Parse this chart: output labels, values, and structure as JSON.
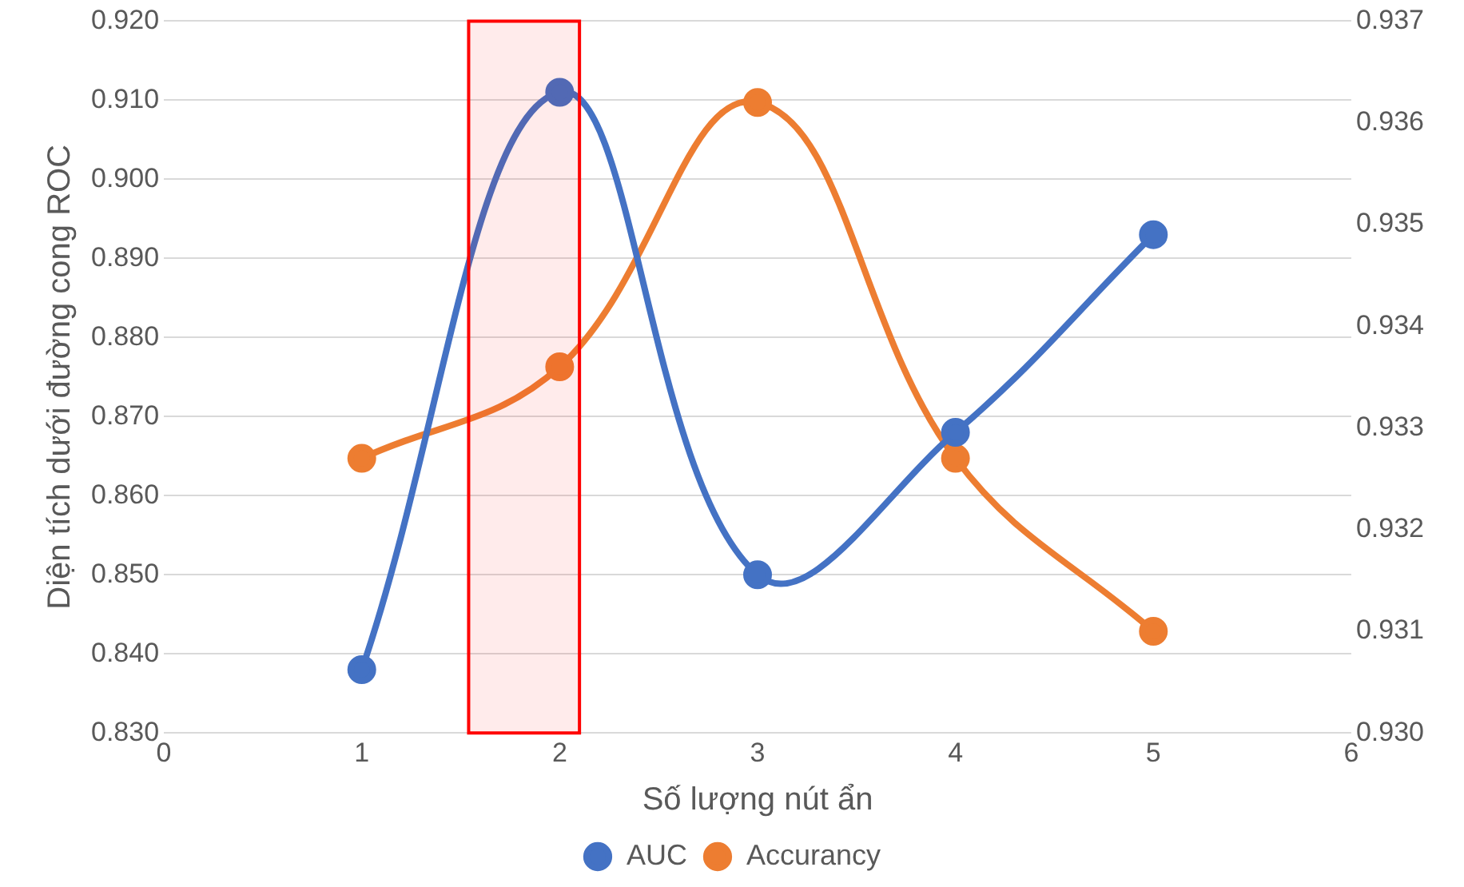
{
  "chart_data": {
    "type": "line",
    "xlabel": "Số lượng nút ẩn",
    "ylabel": "Diện tích dưới đường cong ROC",
    "x": [
      1,
      2,
      3,
      4,
      5
    ],
    "series": [
      {
        "name": "AUC",
        "color": "#4472c4",
        "values": [
          0.838,
          0.911,
          0.85,
          0.868,
          0.893
        ]
      },
      {
        "name": "Accurancy",
        "color": "#ed7d31",
        "axis": "y2",
        "values": [
          0.9327,
          0.9336,
          0.9362,
          0.9327,
          0.931
        ]
      }
    ],
    "xlim": [
      0,
      6
    ],
    "xticks": [
      0,
      1,
      2,
      3,
      4,
      5,
      6
    ],
    "ylim": [
      0.83,
      0.92
    ],
    "yticks": [
      {
        "value": 0.83,
        "label": "0.830"
      },
      {
        "value": 0.84,
        "label": "0.840"
      },
      {
        "value": 0.85,
        "label": "0.850"
      },
      {
        "value": 0.86,
        "label": "0.860"
      },
      {
        "value": 0.87,
        "label": "0.870"
      },
      {
        "value": 0.88,
        "label": "0.880"
      },
      {
        "value": 0.89,
        "label": "0.890"
      },
      {
        "value": 0.9,
        "label": "0.900"
      },
      {
        "value": 0.91,
        "label": "0.910"
      },
      {
        "value": 0.92,
        "label": "0.920"
      }
    ],
    "y2lim": [
      0.93,
      0.937
    ],
    "y2ticks": [
      {
        "value": 0.93,
        "label": "0.930"
      },
      {
        "value": 0.931,
        "label": "0.931"
      },
      {
        "value": 0.932,
        "label": "0.932"
      },
      {
        "value": 0.933,
        "label": "0.933"
      },
      {
        "value": 0.934,
        "label": "0.934"
      },
      {
        "value": 0.935,
        "label": "0.935"
      },
      {
        "value": 0.936,
        "label": "0.936"
      },
      {
        "value": 0.937,
        "label": "0.937"
      }
    ],
    "bands": [
      {
        "axis": "x",
        "from": 1.54,
        "to": 2.1,
        "color": "#ff0000"
      }
    ],
    "grid": "y",
    "legend": "bottom",
    "marker": "circle",
    "line_style": "solid"
  }
}
